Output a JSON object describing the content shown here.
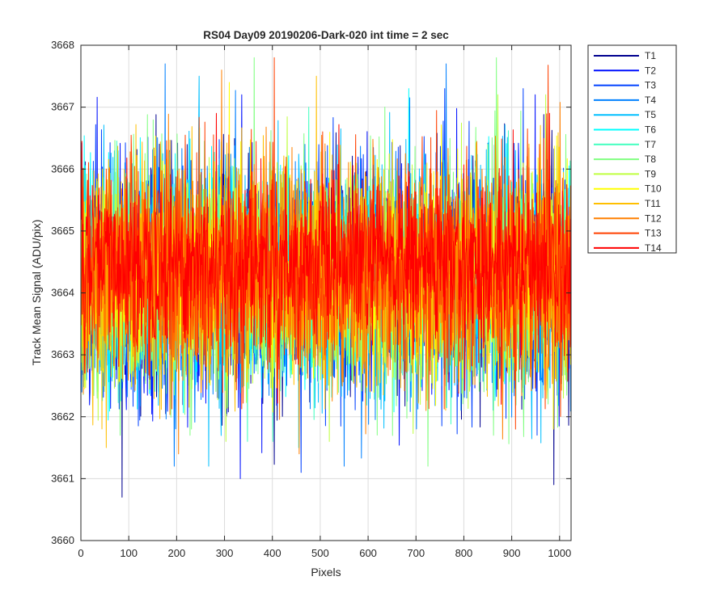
{
  "chart_data": {
    "type": "line",
    "title": "RS04 Day09 20190206-Dark-020 int time = 2 sec",
    "xlabel": "Pixels",
    "ylabel": "Track Mean Signal (ADU/pix)",
    "xlim": [
      0,
      1024
    ],
    "ylim": [
      3660,
      3668
    ],
    "xticks": [
      0,
      100,
      200,
      300,
      400,
      500,
      600,
      700,
      800,
      900,
      1000
    ],
    "yticks": [
      3660,
      3661,
      3662,
      3663,
      3664,
      3665,
      3666,
      3667,
      3668
    ],
    "grid": true,
    "legend_position": "outside-right",
    "x": {
      "start": 1,
      "end": 1024
    },
    "series": [
      {
        "name": "T1",
        "color": "#00008f",
        "mean": 3664.2,
        "min": 3660.7,
        "max": 3667.0
      },
      {
        "name": "T2",
        "color": "#0010ff",
        "mean": 3664.2,
        "min": 3661.0,
        "max": 3667.2
      },
      {
        "name": "T3",
        "color": "#0040ff",
        "mean": 3664.2,
        "min": 3661.1,
        "max": 3667.3
      },
      {
        "name": "T4",
        "color": "#0080ff",
        "mean": 3664.2,
        "min": 3661.2,
        "max": 3667.7
      },
      {
        "name": "T5",
        "color": "#00bfff",
        "mean": 3664.2,
        "min": 3661.2,
        "max": 3667.5
      },
      {
        "name": "T6",
        "color": "#00ffff",
        "mean": 3664.2,
        "min": 3661.5,
        "max": 3667.3
      },
      {
        "name": "T7",
        "color": "#40ffbf",
        "mean": 3664.2,
        "min": 3661.6,
        "max": 3667.0
      },
      {
        "name": "T8",
        "color": "#80ff80",
        "mean": 3664.2,
        "min": 3661.2,
        "max": 3667.8
      },
      {
        "name": "T9",
        "color": "#bfff40",
        "mean": 3664.2,
        "min": 3661.6,
        "max": 3667.2
      },
      {
        "name": "T10",
        "color": "#ffff00",
        "mean": 3664.3,
        "min": 3661.8,
        "max": 3667.4
      },
      {
        "name": "T11",
        "color": "#ffbf00",
        "mean": 3664.3,
        "min": 3661.5,
        "max": 3667.5
      },
      {
        "name": "T12",
        "color": "#ff8000",
        "mean": 3664.3,
        "min": 3661.4,
        "max": 3667.6
      },
      {
        "name": "T13",
        "color": "#ff4000",
        "mean": 3664.4,
        "min": 3661.8,
        "max": 3667.8
      },
      {
        "name": "T14",
        "color": "#ff0000",
        "mean": 3664.5,
        "min": 3662.2,
        "max": 3666.9
      }
    ]
  }
}
